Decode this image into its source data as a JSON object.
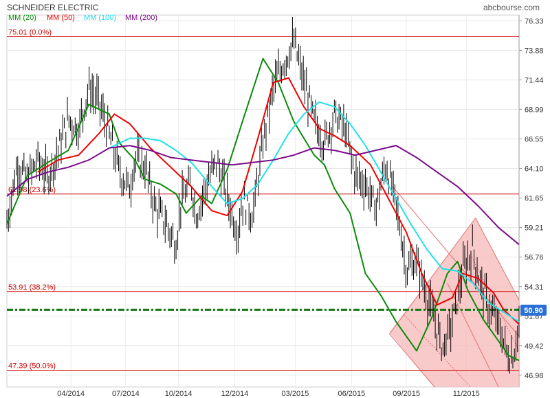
{
  "chart_data": {
    "type": "line",
    "title": "SCHNEIDER ELECTRIC",
    "source": "abcbourse.com",
    "ylim": [
      46.0,
      76.8
    ],
    "y_ticks": [
      "76.33",
      "73.88",
      "71.44",
      "68.99",
      "66.55",
      "64.10",
      "61.65",
      "59.21",
      "56.76",
      "54.31",
      "51.87",
      "49.42",
      "46.98"
    ],
    "x_ticks": [
      "04/2014",
      "07/2014",
      "10/2014",
      "12/2014",
      "03/2015",
      "06/2015",
      "09/2015",
      "11/2015"
    ],
    "last_value": "50.90",
    "colors": {
      "price": "#000000",
      "mm20": "#0a8a0a",
      "mm50": "#ee0000",
      "mm100": "#22e0e8",
      "mm200": "#7a0a8a",
      "fib_line": "#cc0000",
      "support": "#117711",
      "channel_fill": "#f7b8b8",
      "last_badge": "#2a6fd6"
    },
    "legend": [
      {
        "label": "MM (20)",
        "color": "#0a8a0a"
      },
      {
        "label": "MM (50)",
        "color": "#ee0000"
      },
      {
        "label": "MM (100)",
        "color": "#22e0e8"
      },
      {
        "label": "MM (200)",
        "color": "#7a0a8a"
      }
    ],
    "fibonacci_levels": [
      {
        "label": "75.01  (0.0%)",
        "value": 75.01
      },
      {
        "label": "61.98  (23.6%)",
        "value": 61.98
      },
      {
        "label": "53.91  (38.2%)",
        "value": 53.91
      },
      {
        "label": "47.39  (50.0%)",
        "value": 47.39
      }
    ],
    "support_level": 52.4,
    "series": [
      {
        "name": "MM (20)",
        "x": [
          0.0,
          0.04,
          0.08,
          0.12,
          0.16,
          0.2,
          0.22,
          0.25,
          0.27,
          0.3,
          0.33,
          0.35,
          0.38,
          0.4,
          0.43,
          0.46,
          0.5,
          0.53,
          0.56,
          0.6,
          0.62,
          0.64,
          0.67,
          0.7,
          0.73,
          0.76,
          0.8,
          0.83,
          0.86,
          0.88,
          0.9,
          0.93,
          0.96,
          0.98,
          1.0
        ],
        "y": [
          59.5,
          63.5,
          64.6,
          65.6,
          69.4,
          68.6,
          66.2,
          64.8,
          63.2,
          62.8,
          62.0,
          60.4,
          61.8,
          61.2,
          64.0,
          68.0,
          73.2,
          71.2,
          68.0,
          65.2,
          64.4,
          62.4,
          60.4,
          55.4,
          53.6,
          51.4,
          49.0,
          51.8,
          55.4,
          56.4,
          54.0,
          51.6,
          49.8,
          48.6,
          48.2
        ]
      },
      {
        "name": "MM (50)",
        "x": [
          0.06,
          0.1,
          0.14,
          0.18,
          0.21,
          0.24,
          0.28,
          0.32,
          0.36,
          0.4,
          0.43,
          0.46,
          0.49,
          0.52,
          0.55,
          0.58,
          0.61,
          0.64,
          0.67,
          0.71,
          0.74,
          0.78,
          0.81,
          0.84,
          0.87,
          0.89,
          0.92,
          0.95,
          0.97,
          1.0
        ],
        "y": [
          63.8,
          64.8,
          65.2,
          67.0,
          68.6,
          67.8,
          65.8,
          64.2,
          62.6,
          60.6,
          60.2,
          62.2,
          66.6,
          71.2,
          71.6,
          69.2,
          67.4,
          66.8,
          66.0,
          64.4,
          62.0,
          58.8,
          55.4,
          52.8,
          53.4,
          55.4,
          55.0,
          53.8,
          52.4,
          51.2
        ]
      },
      {
        "name": "MM (100)",
        "x": [
          0.2,
          0.24,
          0.27,
          0.3,
          0.33,
          0.36,
          0.4,
          0.43,
          0.46,
          0.49,
          0.52,
          0.55,
          0.58,
          0.61,
          0.64,
          0.67,
          0.7,
          0.73,
          0.76,
          0.79,
          0.82,
          0.85,
          0.88,
          0.91,
          0.94,
          0.97,
          1.0
        ],
        "y": [
          65.8,
          66.6,
          66.6,
          66.4,
          65.6,
          64.6,
          62.6,
          61.2,
          61.6,
          62.8,
          64.8,
          67.0,
          68.6,
          69.6,
          69.2,
          67.8,
          66.0,
          63.8,
          61.6,
          59.4,
          57.4,
          55.8,
          55.6,
          54.6,
          53.0,
          52.2,
          51.4
        ]
      },
      {
        "name": "MM (200)",
        "x": [
          0.0,
          0.04,
          0.08,
          0.12,
          0.16,
          0.2,
          0.24,
          0.28,
          0.32,
          0.36,
          0.4,
          0.44,
          0.48,
          0.52,
          0.56,
          0.6,
          0.64,
          0.68,
          0.72,
          0.76,
          0.8,
          0.84,
          0.88,
          0.92,
          0.96,
          1.0
        ],
        "y": [
          61.8,
          63.2,
          63.8,
          64.2,
          64.8,
          65.8,
          66.0,
          65.6,
          65.0,
          64.8,
          64.6,
          64.4,
          64.6,
          64.8,
          65.2,
          65.8,
          65.6,
          65.2,
          65.6,
          66.0,
          65.0,
          63.8,
          62.6,
          61.0,
          59.2,
          57.8
        ]
      }
    ]
  }
}
